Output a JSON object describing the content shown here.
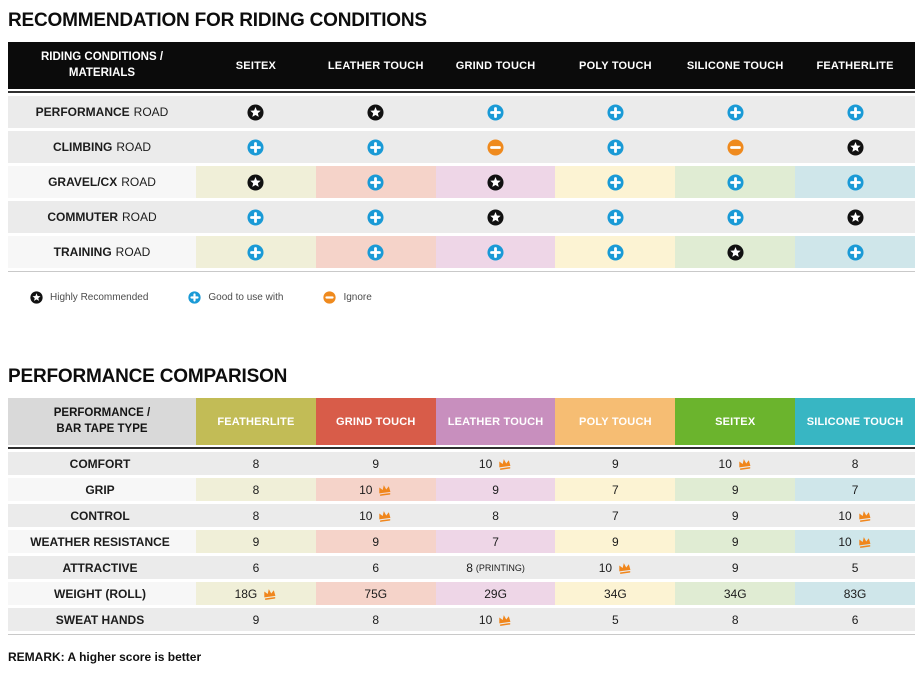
{
  "colors": {
    "star_bg": "#111111",
    "plus_bg": "#1a9ad6",
    "ignore_bg": "#ef8a1e",
    "crown": "#f0861c",
    "row_gray": "#ebebeb",
    "row_light": "#f7f7f7",
    "header_black": "#0b0b0b",
    "t2_label_header": "#d9d9d9",
    "column_tints": [
      "#f0efd8",
      "#f5d3c9",
      "#eed6e7",
      "#fcf3d3",
      "#e0ecd3",
      "#cfe6ea"
    ]
  },
  "table1": {
    "title": "RECOMMENDATION FOR RIDING CONDITIONS",
    "header_label_line1": "RIDING CONDITIONS /",
    "header_label_line2": "MATERIALS",
    "columns": [
      "SEITEX",
      "LEATHER TOUCH",
      "GRIND TOUCH",
      "POLY TOUCH",
      "SILICONE TOUCH",
      "FEATHERLITE"
    ],
    "rows": [
      {
        "label_bold": "PERFORMANCE",
        "label_rest": "ROAD",
        "tinted": false,
        "cells": [
          "star",
          "star",
          "plus",
          "plus",
          "plus",
          "plus"
        ]
      },
      {
        "label_bold": "CLIMBING",
        "label_rest": "ROAD",
        "tinted": false,
        "cells": [
          "plus",
          "plus",
          "ignore",
          "plus",
          "ignore",
          "star"
        ]
      },
      {
        "label_bold": "GRAVEL/CX",
        "label_rest": "ROAD",
        "tinted": true,
        "cells": [
          "star",
          "plus",
          "star",
          "plus",
          "plus",
          "plus"
        ]
      },
      {
        "label_bold": "COMMUTER",
        "label_rest": "ROAD",
        "tinted": false,
        "cells": [
          "plus",
          "plus",
          "star",
          "plus",
          "plus",
          "star"
        ]
      },
      {
        "label_bold": "TRAINING",
        "label_rest": "ROAD",
        "tinted": true,
        "cells": [
          "plus",
          "plus",
          "plus",
          "plus",
          "star",
          "plus"
        ]
      }
    ],
    "legend": [
      {
        "icon": "star-icon",
        "type": "star",
        "label": "Highly Recommended"
      },
      {
        "icon": "plus-icon",
        "type": "plus",
        "label": "Good to use with"
      },
      {
        "icon": "ignore-icon",
        "type": "ignore",
        "label": "Ignore"
      }
    ]
  },
  "table2": {
    "title": "PERFORMANCE COMPARISON",
    "header_label_line1": "PERFORMANCE /",
    "header_label_line2": "BAR TAPE TYPE",
    "columns": [
      {
        "name": "FEATHERLITE",
        "color": "#c2bc56"
      },
      {
        "name": "GRIND TOUCH",
        "color": "#d85c49"
      },
      {
        "name": "LEATHER TOUCH",
        "color": "#c88fbe"
      },
      {
        "name": "POLY TOUCH",
        "color": "#f6bd73"
      },
      {
        "name": "SEITEX",
        "color": "#6bb42d"
      },
      {
        "name": "SILICONE TOUCH",
        "color": "#38b6c3"
      }
    ],
    "rows": [
      {
        "label": "COMFORT",
        "tinted": false,
        "cells": [
          {
            "v": "8"
          },
          {
            "v": "9"
          },
          {
            "v": "10",
            "crown": true
          },
          {
            "v": "9"
          },
          {
            "v": "10",
            "crown": true
          },
          {
            "v": "8"
          }
        ]
      },
      {
        "label": "GRIP",
        "tinted": true,
        "cells": [
          {
            "v": "8"
          },
          {
            "v": "10",
            "crown": true
          },
          {
            "v": "9"
          },
          {
            "v": "7"
          },
          {
            "v": "9"
          },
          {
            "v": "7"
          }
        ]
      },
      {
        "label": "CONTROL",
        "tinted": false,
        "cells": [
          {
            "v": "8"
          },
          {
            "v": "10",
            "crown": true
          },
          {
            "v": "8"
          },
          {
            "v": "7"
          },
          {
            "v": "9"
          },
          {
            "v": "10",
            "crown": true
          }
        ]
      },
      {
        "label": "WEATHER RESISTANCE",
        "tinted": true,
        "cells": [
          {
            "v": "9"
          },
          {
            "v": "9"
          },
          {
            "v": "7"
          },
          {
            "v": "9"
          },
          {
            "v": "9"
          },
          {
            "v": "10",
            "crown": true
          }
        ]
      },
      {
        "label": "ATTRACTIVE",
        "tinted": false,
        "cells": [
          {
            "v": "6"
          },
          {
            "v": "6"
          },
          {
            "v": "8",
            "note": "(PRINTING)"
          },
          {
            "v": "10",
            "crown": true
          },
          {
            "v": "9"
          },
          {
            "v": "5"
          }
        ]
      },
      {
        "label": "WEIGHT (ROLL)",
        "tinted": true,
        "cells": [
          {
            "v": "18G",
            "crown": true
          },
          {
            "v": "75G"
          },
          {
            "v": "29G"
          },
          {
            "v": "34G"
          },
          {
            "v": "34G"
          },
          {
            "v": "83G"
          }
        ]
      },
      {
        "label": "SWEAT HANDS",
        "tinted": false,
        "cells": [
          {
            "v": "9"
          },
          {
            "v": "8"
          },
          {
            "v": "10",
            "crown": true
          },
          {
            "v": "5"
          },
          {
            "v": "8"
          },
          {
            "v": "6"
          }
        ]
      }
    ],
    "remark": "REMARK: A higher score is better"
  }
}
